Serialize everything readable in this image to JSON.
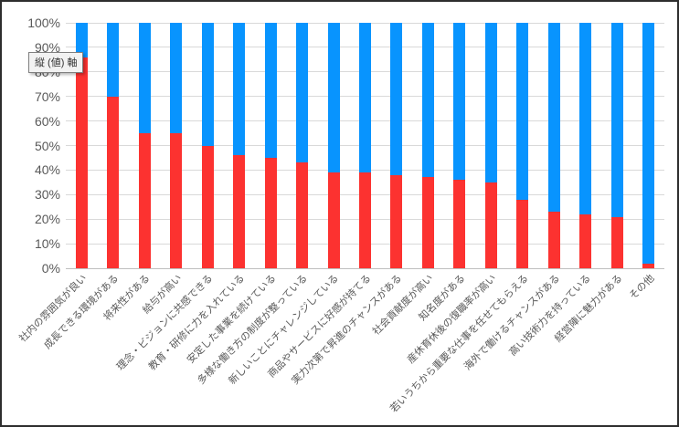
{
  "ui": {
    "axis_tooltip": "縦 (値) 軸"
  },
  "colors": {
    "bar_red": "#FC3230",
    "bar_blue": "#0894FE",
    "gridline": "#D9D9D9",
    "axis_line": "#BFBFBF",
    "axis_text": "#595959",
    "canvas_border": "#2E2E2E",
    "background": "#FFFFFF"
  },
  "chart_data": {
    "type": "bar",
    "subtype": "100%-stacked-column",
    "title": "",
    "xlabel": "",
    "ylabel": "",
    "ylim": [
      0,
      100
    ],
    "values_unit": "%",
    "grid": true,
    "legend": "none",
    "categories": [
      "社内の雰囲気が良い",
      "成長できる環境がある",
      "将来性がある",
      "給与が高い",
      "理念・ビジョンに共感できる",
      "教育・研修に力を入れている",
      "安定した事業を続けている",
      "多様な働き方の制度が整っている",
      "新しいことにチャレンジしている",
      "商品やサービスに好感が持てる",
      "実力次第で昇進のチャンスがある",
      "社会貢献度が高い",
      "知名度がある",
      "産休育休後の復職率が高い",
      "若いうちから重要な仕事を任せてもらえる",
      "海外で働けるチャンスがある",
      "高い技術力を持っている",
      "経営陣に魅力がある",
      "その他"
    ],
    "series": [
      {
        "name": "series-red-bottom",
        "color": "#FC3230",
        "values": [
          86,
          70,
          55,
          55,
          50,
          46,
          45,
          43,
          39,
          39,
          38,
          37,
          36,
          35,
          28,
          23,
          22,
          21,
          2
        ]
      },
      {
        "name": "series-blue-top",
        "color": "#0894FE",
        "values": [
          14,
          30,
          45,
          45,
          50,
          54,
          55,
          57,
          61,
          61,
          62,
          63,
          64,
          65,
          72,
          77,
          78,
          79,
          98
        ]
      }
    ],
    "y_axis": {
      "ticks": [
        "100%",
        "90%",
        "80%",
        "70%",
        "60%",
        "50%",
        "40%",
        "30%",
        "20%",
        "10%",
        "0%"
      ]
    }
  }
}
